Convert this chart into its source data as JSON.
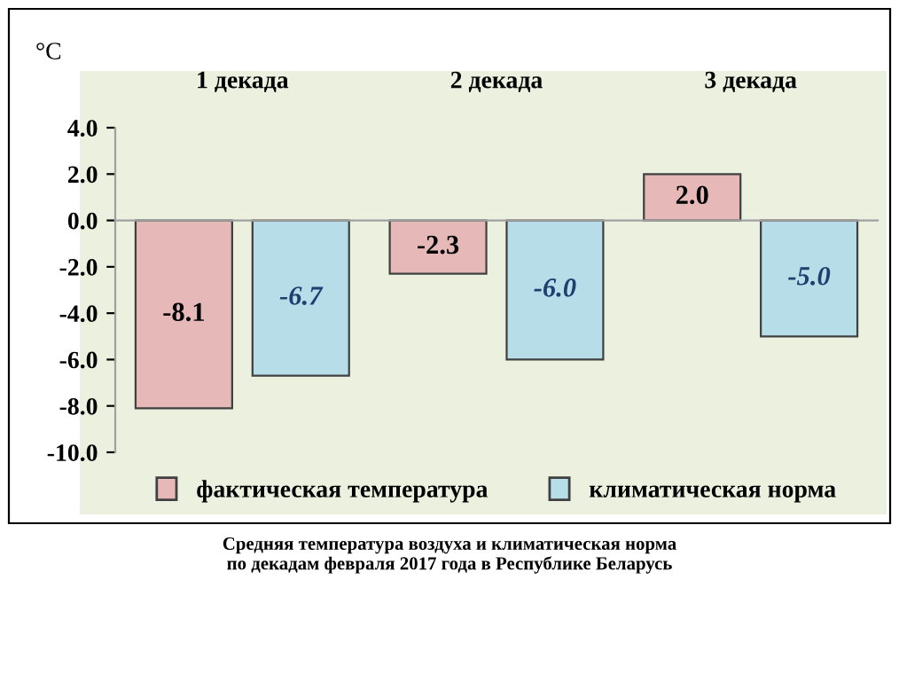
{
  "chart_data": {
    "type": "bar",
    "ylabel": "°C",
    "categories": [
      "1 декада",
      "2 декада",
      "3 декада"
    ],
    "series": [
      {
        "name": "фактическая температура",
        "color": "#e6b9b8",
        "values": [
          -8.1,
          -2.3,
          2.0
        ],
        "value_labels": [
          "-8.1",
          "-2.3",
          "2.0"
        ]
      },
      {
        "name": "климатическая норма",
        "color": "#b7dee8",
        "values": [
          -6.7,
          -6.0,
          -5.0
        ],
        "value_labels": [
          "-6.7",
          "-6.0",
          "-5.0"
        ]
      }
    ],
    "ylim": [
      -10,
      4
    ],
    "yticks": [
      {
        "value": 4,
        "label": "4.0"
      },
      {
        "value": 2,
        "label": "2.0"
      },
      {
        "value": 0,
        "label": "0.0"
      },
      {
        "value": -2,
        "label": "-2.0"
      },
      {
        "value": -4,
        "label": "-4.0"
      },
      {
        "value": -6,
        "label": "-6.0"
      },
      {
        "value": -8,
        "label": "-8.0"
      },
      {
        "value": -10,
        "label": "-10.0"
      }
    ],
    "legend": "bottom",
    "annotations": [
      "Средняя температура воздуха и климатическая норма\nпо декадам февраля 2017 года в Республике Беларусь"
    ]
  }
}
